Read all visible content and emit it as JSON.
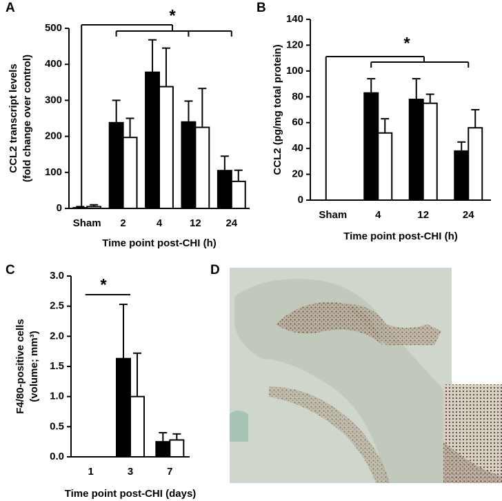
{
  "chart_data": [
    {
      "type": "bar",
      "panel": "A",
      "ylabel": [
        "CCL2 transcript levels",
        "(fold change over control)"
      ],
      "xlabel": "Time point post-CHI (h)",
      "categories": [
        "Sham",
        "2",
        "4",
        "12",
        "24"
      ],
      "series": [
        {
          "color": "#000000",
          "values": [
            2,
            238,
            378,
            240,
            105
          ],
          "errors": [
            3,
            62,
            90,
            58,
            40
          ]
        },
        {
          "color": "#ffffff",
          "values": [
            5,
            197,
            338,
            225,
            75
          ],
          "errors": [
            5,
            53,
            107,
            108,
            31
          ]
        }
      ],
      "ylim": [
        0,
        500
      ],
      "yticks": [
        0,
        100,
        200,
        300,
        400,
        500
      ],
      "annotations": [
        "*"
      ]
    },
    {
      "type": "bar",
      "panel": "B",
      "ylabel": [
        "CCL2 (pg/mg total protein)"
      ],
      "xlabel": "Time point post-CHI (h)",
      "categories": [
        "Sham",
        "4",
        "12",
        "24"
      ],
      "series": [
        {
          "color": "#000000",
          "values": [
            null,
            83,
            78,
            38
          ],
          "errors": [
            null,
            11,
            16,
            7
          ]
        },
        {
          "color": "#ffffff",
          "values": [
            null,
            52,
            75,
            56
          ],
          "errors": [
            null,
            11,
            7,
            14
          ]
        }
      ],
      "ylim": [
        0,
        140
      ],
      "yticks": [
        0,
        20,
        40,
        60,
        80,
        100,
        120,
        140
      ],
      "annotations": [
        "*"
      ]
    },
    {
      "type": "bar",
      "panel": "C",
      "ylabel": [
        "F4/80-positive cells",
        "(volume; mm³)"
      ],
      "xlabel": "Time point post-CHI (days)",
      "categories": [
        "1",
        "3",
        "7"
      ],
      "series": [
        {
          "color": "#000000",
          "values": [
            null,
            1.63,
            0.25
          ],
          "errors": [
            null,
            0.9,
            0.15
          ]
        },
        {
          "color": "#ffffff",
          "values": [
            null,
            1.0,
            0.28
          ],
          "errors": [
            null,
            0.72,
            0.1
          ]
        }
      ],
      "ylim": [
        0,
        3
      ],
      "yticks": [
        {
          "value": 0,
          "label": "0.0"
        },
        0.5,
        {
          "value": 1,
          "label": "1.0"
        },
        1.5,
        {
          "value": 2,
          "label": "2.0"
        },
        2.5,
        {
          "value": 3,
          "label": "3.0"
        }
      ],
      "annotations": [
        "*"
      ]
    }
  ],
  "image_panel": {
    "panel": "D"
  }
}
